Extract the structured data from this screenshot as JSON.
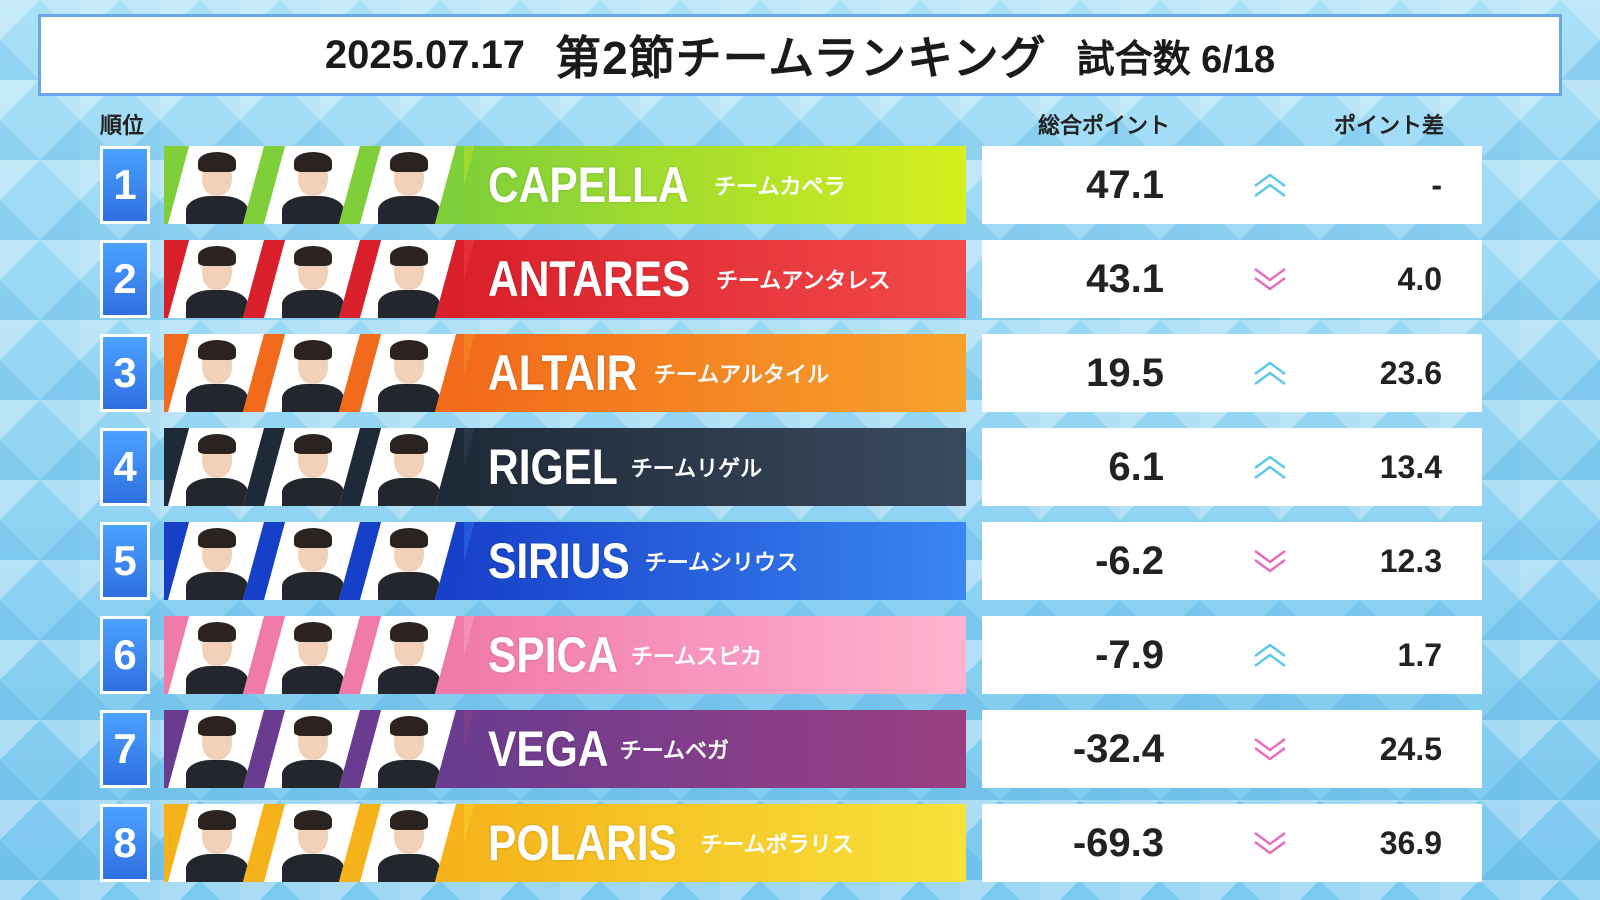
{
  "header": {
    "date": "2025.07.17",
    "title": "第2節チームランキング",
    "games": "試合数 6/18"
  },
  "columns": {
    "rank": "順位",
    "total_points": "総合ポイント",
    "point_diff": "ポイント差"
  },
  "colors": {
    "rank_badge": "#3b86f0",
    "up_arrow": "#5bc8e8",
    "down_arrow": "#e86bbd"
  },
  "teams": [
    {
      "rank": "1",
      "name": "CAPELLA",
      "name_jp": "チームカペラ",
      "points": "47.1",
      "trend": "up",
      "diff": "-",
      "color1": "#7ecf3a",
      "color2": "#d6ef1e"
    },
    {
      "rank": "2",
      "name": "ANTARES",
      "name_jp": "チームアンタレス",
      "points": "43.1",
      "trend": "down",
      "diff": "4.0",
      "color1": "#d91f2a",
      "color2": "#f24a4a"
    },
    {
      "rank": "3",
      "name": "ALTAIR",
      "name_jp": "チームアルタイル",
      "points": "19.5",
      "trend": "up",
      "diff": "23.6",
      "color1": "#f26a1b",
      "color2": "#f7a22c"
    },
    {
      "rank": "4",
      "name": "RIGEL",
      "name_jp": "チームリゲル",
      "points": "6.1",
      "trend": "up",
      "diff": "13.4",
      "color1": "#1f2a38",
      "color2": "#3a4a5e"
    },
    {
      "rank": "5",
      "name": "SIRIUS",
      "name_jp": "チームシリウス",
      "points": "-6.2",
      "trend": "down",
      "diff": "12.3",
      "color1": "#1740c9",
      "color2": "#3a86f2"
    },
    {
      "rank": "6",
      "name": "SPICA",
      "name_jp": "チームスピカ",
      "points": "-7.9",
      "trend": "up",
      "diff": "1.7",
      "color1": "#f07aa8",
      "color2": "#ffb3cf"
    },
    {
      "rank": "7",
      "name": "VEGA",
      "name_jp": "チームベガ",
      "points": "-32.4",
      "trend": "down",
      "diff": "24.5",
      "color1": "#6a3c8f",
      "color2": "#9b3f82"
    },
    {
      "rank": "8",
      "name": "POLARIS",
      "name_jp": "チームポラリス",
      "points": "-69.3",
      "trend": "down",
      "diff": "36.9",
      "color1": "#f5b21a",
      "color2": "#f7e23a"
    }
  ]
}
